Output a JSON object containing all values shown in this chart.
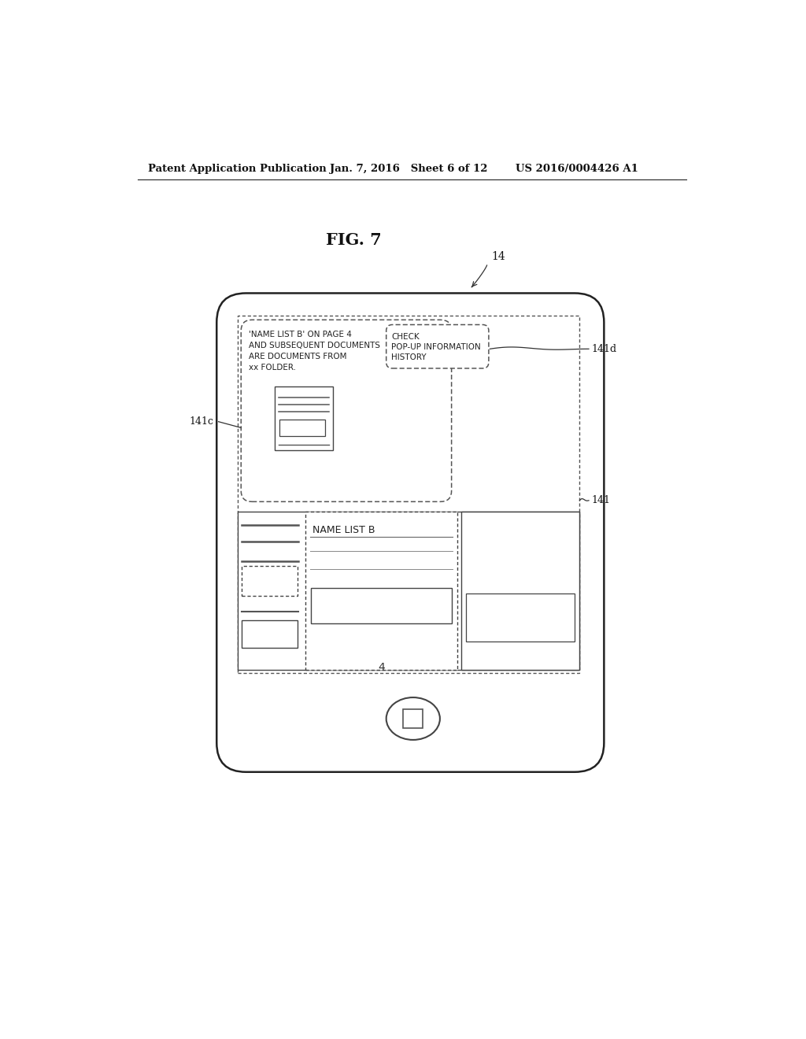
{
  "bg_color": "#ffffff",
  "header_left": "Patent Application Publication",
  "header_mid": "Jan. 7, 2016   Sheet 6 of 12",
  "header_right": "US 2016/0004426 A1",
  "fig_label": "FIG. 7",
  "device_label": "14",
  "label_141c": "141c",
  "label_141d": "141d",
  "label_141": "141",
  "popup_text_line1": "'NAME LIST B' ON PAGE 4",
  "popup_text_line2": "AND SUBSEQUENT DOCUMENTS",
  "popup_text_line3": "ARE DOCUMENTS FROM",
  "popup_text_line4": "xx FOLDER.",
  "button_text_line1": "CHECK",
  "button_text_line2": "POP-UP INFORMATION",
  "button_text_line3": "HISTORY",
  "name_list_label": "NAME LIST B",
  "page_number": "4"
}
